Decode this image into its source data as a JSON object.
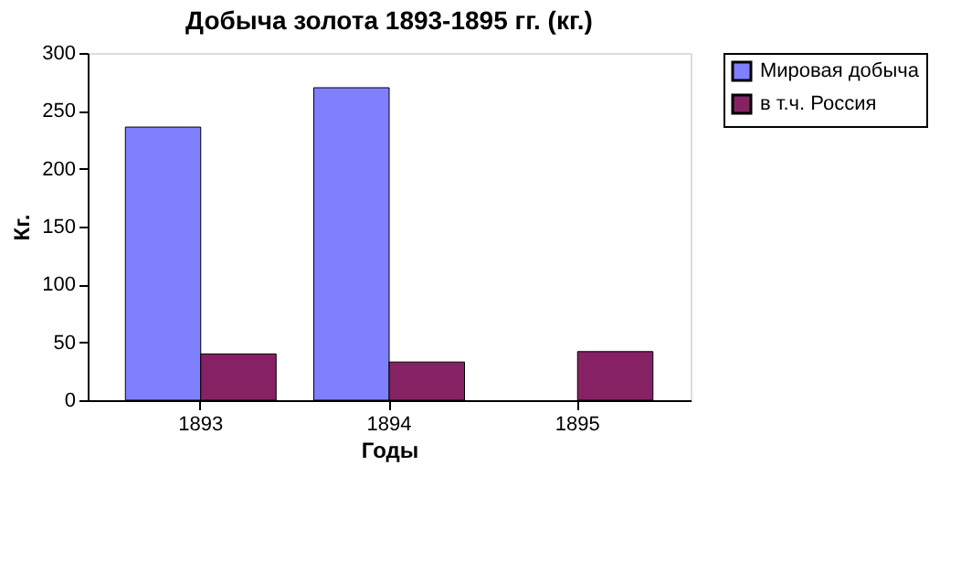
{
  "chart_data": {
    "type": "bar",
    "title": "Добыча золота 1893-1895 гг. (кг.)",
    "xlabel": "Годы",
    "ylabel": "Кг.",
    "categories": [
      "1893",
      "1894",
      "1895"
    ],
    "series": [
      {
        "name": "Мировая добыча",
        "color": "#8080ff",
        "values": [
          236,
          270,
          null
        ]
      },
      {
        "name": "в т.ч. Россия",
        "color": "#862264",
        "values": [
          40,
          33,
          42
        ]
      }
    ],
    "ylim": [
      0,
      300
    ],
    "yticks": [
      0,
      50,
      100,
      150,
      200,
      250,
      300
    ],
    "grid": false,
    "legend": "right"
  }
}
